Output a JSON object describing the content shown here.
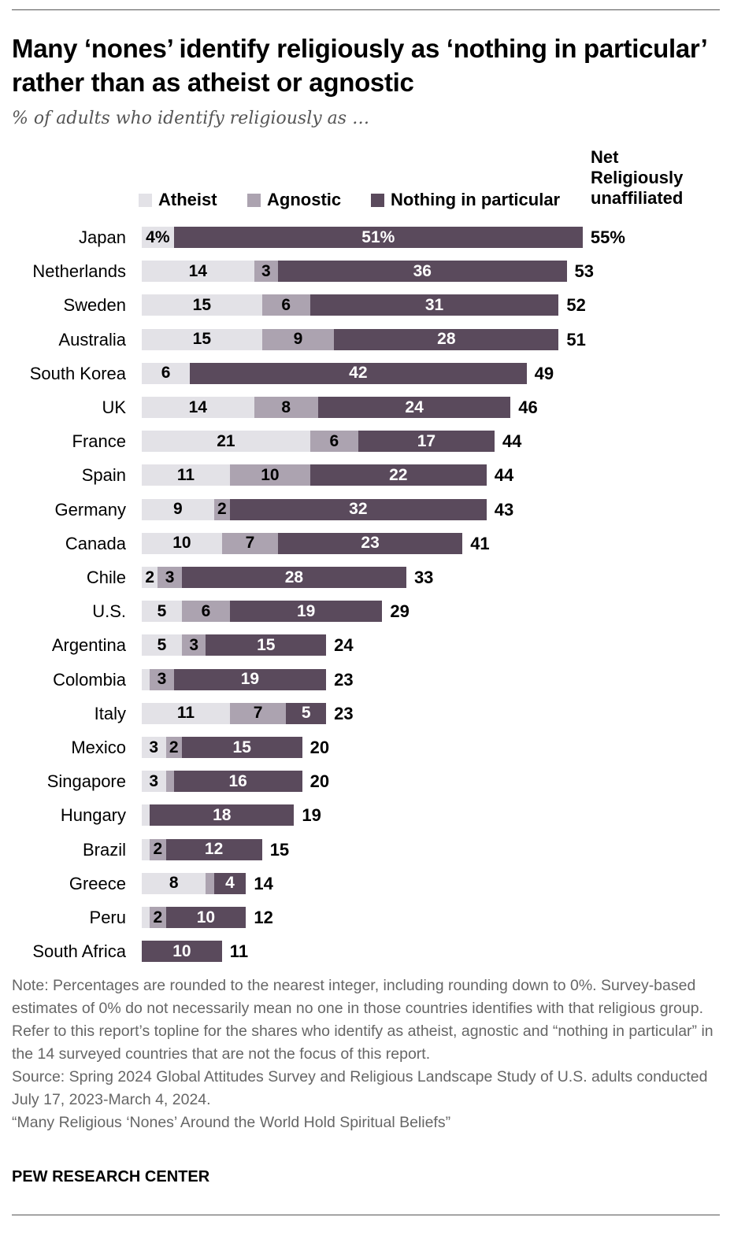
{
  "chart_data": {
    "type": "bar",
    "orientation": "horizontal-stacked",
    "title": "Many ‘nones’ identify religiously as ‘nothing in particular’ rather than as atheist or agnostic",
    "subtitle": "% of adults who identify religiously as …",
    "legend": [
      "Atheist",
      "Agnostic",
      "Nothing in particular"
    ],
    "net_header": [
      "Net",
      "Religiously",
      "unaffiliated"
    ],
    "colors": {
      "Atheist": "#e3e2e7",
      "Agnostic": "#aca3b0",
      "Nothing in particular": "#5a4a5c"
    },
    "categories": [
      "Japan",
      "Netherlands",
      "Sweden",
      "Australia",
      "South Korea",
      "UK",
      "France",
      "Spain",
      "Germany",
      "Canada",
      "Chile",
      "U.S.",
      "Argentina",
      "Colombia",
      "Italy",
      "Mexico",
      "Singapore",
      "Hungary",
      "Brazil",
      "Greece",
      "Peru",
      "South Africa"
    ],
    "series": [
      {
        "name": "Atheist",
        "values": [
          4,
          14,
          15,
          15,
          6,
          14,
          21,
          11,
          9,
          10,
          2,
          5,
          5,
          1,
          11,
          3,
          3,
          1,
          1,
          8,
          1,
          0
        ],
        "labels": [
          "4%",
          "14",
          "15",
          "15",
          "6",
          "14",
          "21",
          "11",
          "9",
          "10",
          "2",
          "5",
          "5",
          null,
          "11",
          "3",
          "3",
          null,
          null,
          "8",
          null,
          null
        ]
      },
      {
        "name": "Agnostic",
        "values": [
          0,
          3,
          6,
          9,
          0,
          8,
          6,
          10,
          2,
          7,
          3,
          6,
          3,
          3,
          7,
          2,
          1,
          0,
          2,
          1,
          2,
          0
        ],
        "labels": [
          null,
          "3",
          "6",
          "9",
          null,
          "8",
          "6",
          "10",
          "2",
          "7",
          "3",
          "6",
          "3",
          "3",
          "7",
          "2",
          null,
          null,
          "2",
          null,
          "2",
          null
        ]
      },
      {
        "name": "Nothing in particular",
        "values": [
          51,
          36,
          31,
          28,
          42,
          24,
          17,
          22,
          32,
          23,
          28,
          19,
          15,
          19,
          5,
          15,
          16,
          18,
          12,
          4,
          10,
          10
        ],
        "labels": [
          "51%",
          "36",
          "31",
          "28",
          "42",
          "24",
          "17",
          "22",
          "32",
          "23",
          "28",
          "19",
          "15",
          "19",
          "5",
          "15",
          "16",
          "18",
          "12",
          "4",
          "10",
          "10"
        ]
      }
    ],
    "net": [
      "55%",
      "53",
      "52",
      "51",
      "49",
      "46",
      "44",
      "44",
      "43",
      "41",
      "33",
      "29",
      "24",
      "23",
      "23",
      "20",
      "20",
      "19",
      "15",
      "14",
      "12",
      "11"
    ],
    "xlim": [
      0,
      55
    ]
  },
  "notes": [
    "Note: Percentages are rounded to the nearest integer, including rounding down to 0%. Survey-based estimates of 0% do not necessarily mean no one in those countries identifies with that religious group. Refer to this report’s topline for the shares who identify as atheist, agnostic and “nothing in particular” in the 14 surveyed countries that are not the focus of this report.",
    "Source: Spring 2024 Global Attitudes Survey and Religious Landscape Study of U.S. adults conducted July 17, 2023-March 4, 2024.",
    "“Many Religious ‘Nones’ Around the World Hold Spiritual Beliefs”"
  ],
  "brand": "PEW RESEARCH CENTER"
}
